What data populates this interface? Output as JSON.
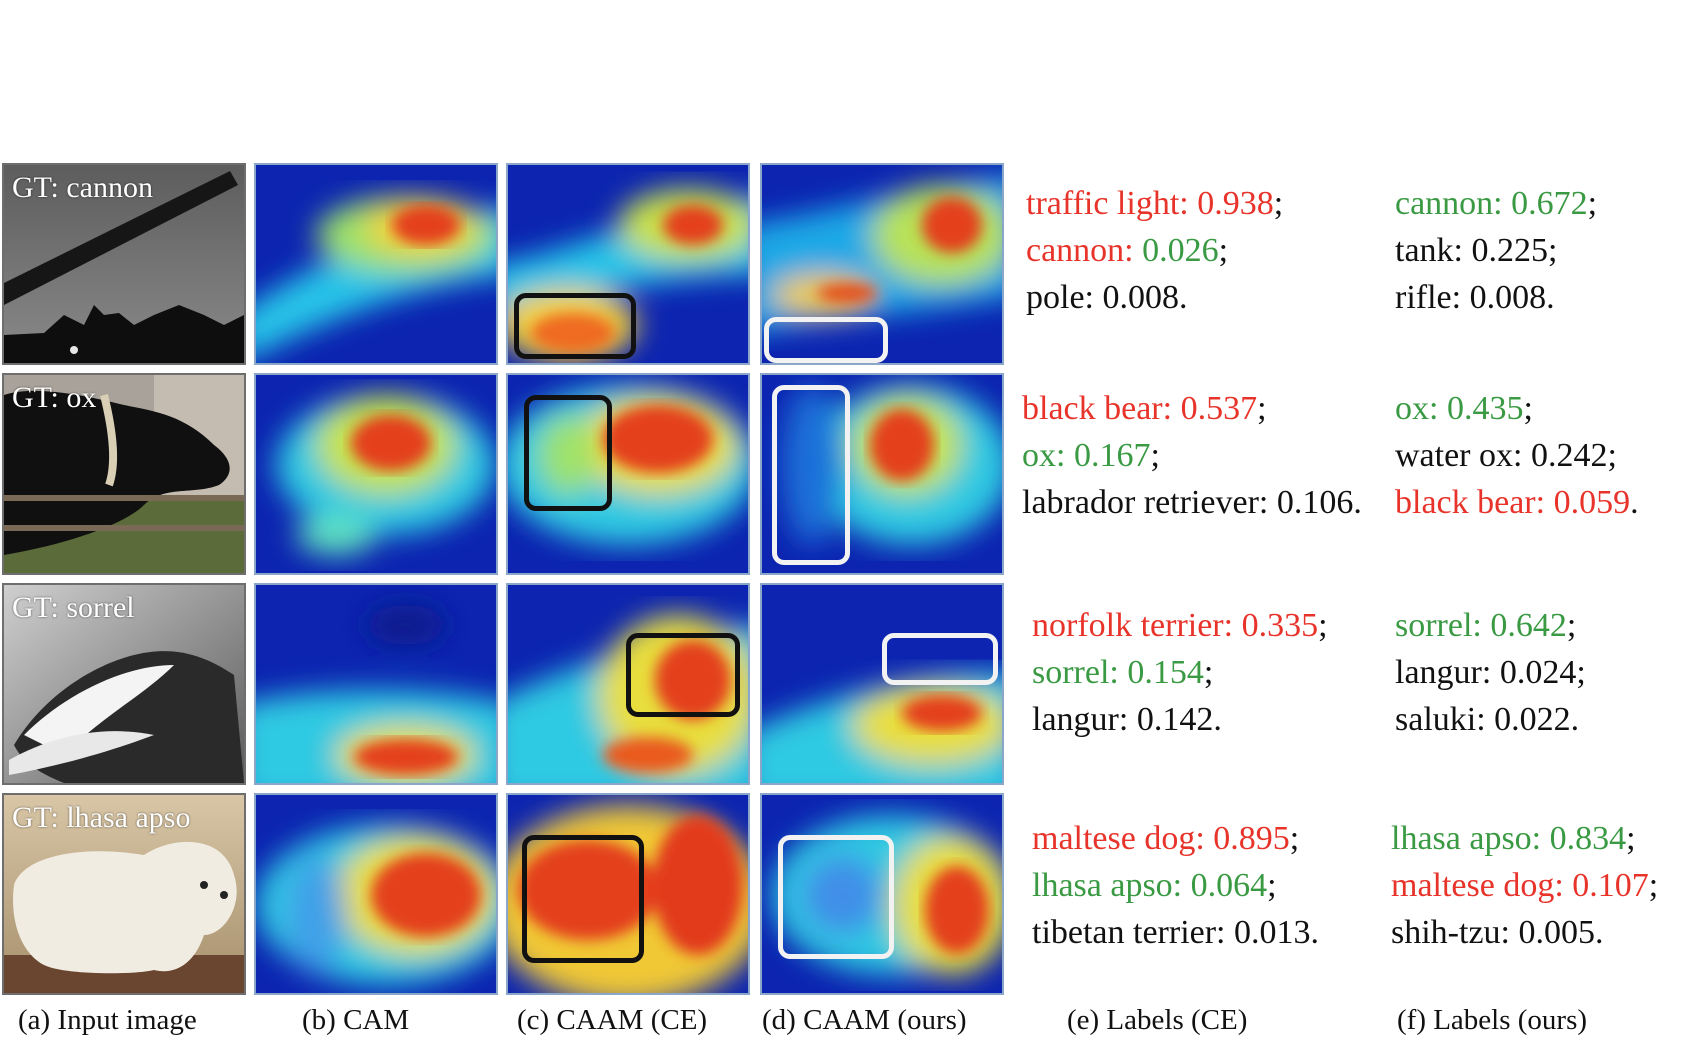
{
  "figure": {
    "rows": [
      {
        "gt": "GT: cannon",
        "labels_ce": [
          {
            "name": "traffic light: ",
            "name_color": "red",
            "value": "0.938",
            "value_color": "red",
            "sep": ";"
          },
          {
            "name": "cannon: ",
            "name_color": "red",
            "value": "0.026",
            "value_color": "green",
            "sep": ";"
          },
          {
            "name": "pole: ",
            "name_color": "black",
            "value": "0.008",
            "value_color": "black",
            "sep": "."
          }
        ],
        "labels_ours": [
          {
            "name": "cannon: ",
            "name_color": "green",
            "value": "0.672",
            "value_color": "green",
            "sep": ";"
          },
          {
            "name": "tank: ",
            "name_color": "black",
            "value": "0.225",
            "value_color": "black",
            "sep": ";"
          },
          {
            "name": "rifle: ",
            "name_color": "black",
            "value": "0.008",
            "value_color": "black",
            "sep": "."
          }
        ]
      },
      {
        "gt": "GT: ox",
        "labels_ce": [
          {
            "name": "black bear: ",
            "name_color": "red",
            "value": "0.537",
            "value_color": "red",
            "sep": ";"
          },
          {
            "name": "ox: ",
            "name_color": "green",
            "value": "0.167",
            "value_color": "green",
            "sep": ";"
          },
          {
            "name": "labrador retriever: ",
            "name_color": "black",
            "value": "0.106",
            "value_color": "black",
            "sep": "."
          }
        ],
        "labels_ours": [
          {
            "name": "ox: ",
            "name_color": "green",
            "value": "0.435",
            "value_color": "green",
            "sep": ";"
          },
          {
            "name": "water ox: ",
            "name_color": "black",
            "value": "0.242",
            "value_color": "black",
            "sep": ";"
          },
          {
            "name": "black bear: ",
            "name_color": "red",
            "value": "0.059",
            "value_color": "red",
            "sep": "."
          }
        ]
      },
      {
        "gt": "GT: sorrel",
        "labels_ce": [
          {
            "name": "norfolk terrier: ",
            "name_color": "red",
            "value": "0.335",
            "value_color": "red",
            "sep": ";"
          },
          {
            "name": "sorrel: ",
            "name_color": "green",
            "value": "0.154",
            "value_color": "green",
            "sep": ";"
          },
          {
            "name": "langur: ",
            "name_color": "black",
            "value": "0.142",
            "value_color": "black",
            "sep": "."
          }
        ],
        "labels_ours": [
          {
            "name": "sorrel: ",
            "name_color": "green",
            "value": "0.642",
            "value_color": "green",
            "sep": ";"
          },
          {
            "name": "langur: ",
            "name_color": "black",
            "value": "0.024",
            "value_color": "black",
            "sep": ";"
          },
          {
            "name": "saluki: ",
            "name_color": "black",
            "value": "0.022",
            "value_color": "black",
            "sep": "."
          }
        ]
      },
      {
        "gt": "GT: lhasa apso",
        "labels_ce": [
          {
            "name": "maltese dog: ",
            "name_color": "red",
            "value": "0.895",
            "value_color": "red",
            "sep": ";"
          },
          {
            "name": "lhasa apso: ",
            "name_color": "green",
            "value": "0.064",
            "value_color": "green",
            "sep": ";"
          },
          {
            "name": "tibetan terrier: ",
            "name_color": "black",
            "value": "0.013",
            "value_color": "black",
            "sep": "."
          }
        ],
        "labels_ours": [
          {
            "name": "lhasa apso: ",
            "name_color": "green",
            "value": "0.834",
            "value_color": "green",
            "sep": ";"
          },
          {
            "name": "maltese dog: ",
            "name_color": "red",
            "value": "0.107",
            "value_color": "red",
            "sep": ";"
          },
          {
            "name": "shih-tzu: ",
            "name_color": "black",
            "value": "0.005",
            "value_color": "black",
            "sep": "."
          }
        ]
      }
    ],
    "captions": [
      "(a) Input image",
      "(b) CAM",
      "(c) CAAM (CE)",
      "(d) CAAM (ours)",
      "(e) Labels (CE)",
      "(f) Labels (ours)"
    ],
    "colors": {
      "red": "#e8332a",
      "green": "#3a9a43",
      "black": "#111111"
    }
  }
}
